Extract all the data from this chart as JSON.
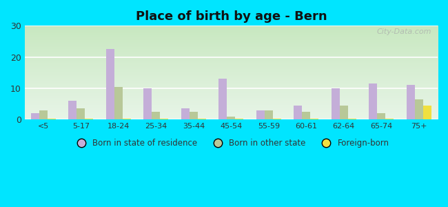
{
  "title": "Place of birth by age - Bern",
  "categories": [
    "<5",
    "5-17",
    "18-24",
    "25-34",
    "35-44",
    "45-54",
    "55-59",
    "60-61",
    "62-64",
    "65-74",
    "75+"
  ],
  "born_in_state": [
    2.0,
    6.0,
    22.5,
    10.0,
    3.5,
    13.0,
    3.0,
    4.5,
    10.0,
    11.5,
    11.0
  ],
  "born_other_state": [
    3.0,
    3.5,
    10.5,
    2.5,
    2.5,
    1.0,
    3.0,
    2.5,
    4.5,
    2.0,
    6.5
  ],
  "foreign_born": [
    0.3,
    0.3,
    0.3,
    0.3,
    0.3,
    0.3,
    0.3,
    0.3,
    0.3,
    0.3,
    4.5
  ],
  "color_state": "#c4aed8",
  "color_other": "#b8c898",
  "color_foreign": "#f0e040",
  "ylim": [
    0,
    30
  ],
  "yticks": [
    0,
    10,
    20,
    30
  ],
  "grad_top": "#c8e8c0",
  "grad_bottom": "#e8f5e8",
  "outer_background": "#00e5ff",
  "watermark": "City-Data.com",
  "legend_labels": [
    "Born in state of residence",
    "Born in other state",
    "Foreign-born"
  ]
}
